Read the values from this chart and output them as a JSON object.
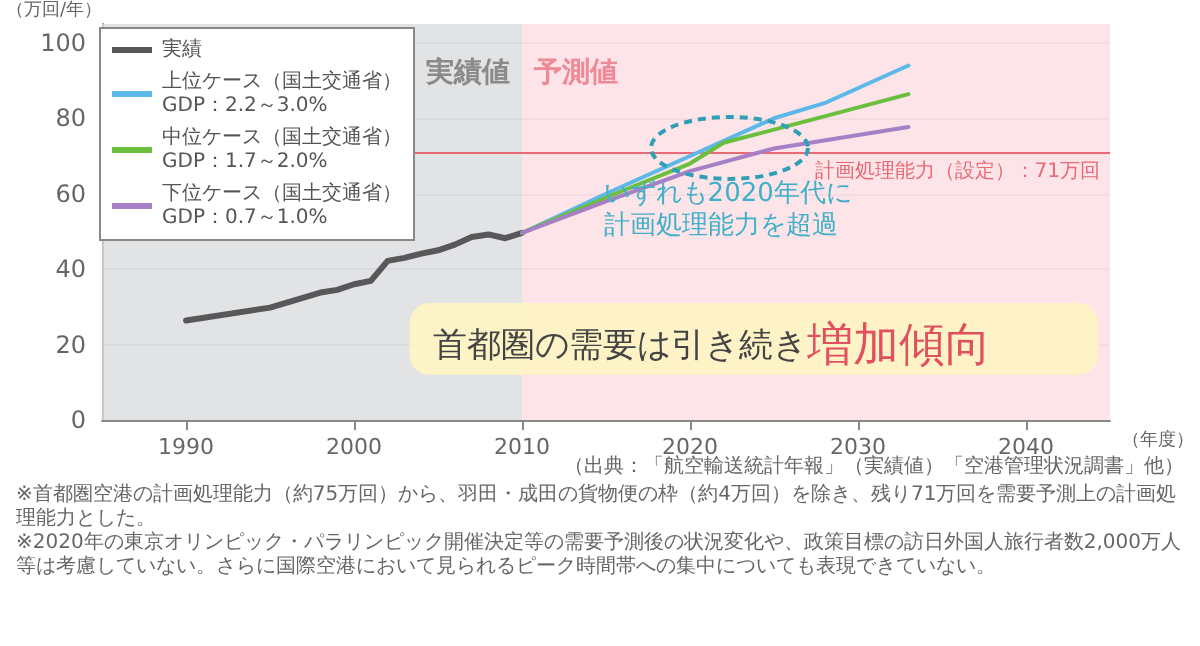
{
  "chart_data": {
    "type": "line",
    "ylabel": "（万回/年）",
    "xlabel": "（年度）",
    "xlim": [
      1985,
      2045
    ],
    "xticks": [
      1990,
      2000,
      2010,
      2020,
      2030,
      2040
    ],
    "ylim": [
      0,
      105
    ],
    "yticks": [
      0,
      20,
      40,
      60,
      80,
      100
    ],
    "grid": "y",
    "legend": "top left",
    "marker": "none",
    "line_style": "solid",
    "series": [
      {
        "name": "実績",
        "color": "#58585a",
        "x": [
          1990,
          1995,
          1998,
          1999,
          2000,
          2001,
          2002,
          2003,
          2004,
          2005,
          2006,
          2007,
          2008,
          2009,
          2010
        ],
        "values": [
          26.4,
          29.8,
          33.8,
          34.5,
          36,
          36.9,
          42.2,
          43,
          44.1,
          45,
          46.5,
          48.5,
          49.2,
          48.2,
          49.6
        ]
      },
      {
        "name": "上位ケース（国土交通省）\nGDP：2.2～3.0%",
        "color": "#5bb8e8",
        "x": [
          2010,
          2015,
          2020,
          2025,
          2028,
          2033
        ],
        "values": [
          49.6,
          60,
          70,
          80,
          84,
          94
        ]
      },
      {
        "name": "中位ケース（国土交通省）\nGDP：1.7～2.0%",
        "color": "#6abf3f",
        "x": [
          2010,
          2015,
          2020,
          2022,
          2025,
          2028,
          2033
        ],
        "values": [
          49.6,
          59,
          68,
          73.5,
          77,
          80.5,
          86.4
        ]
      },
      {
        "name": "下位ケース（国土交通省）\nGDP：0.7～1.0%",
        "color": "#a67fc4",
        "x": [
          2010,
          2015,
          2020,
          2025,
          2033
        ],
        "values": [
          49.6,
          58,
          66,
          72,
          77.7
        ]
      }
    ],
    "ref_lines": [
      {
        "axis": "y",
        "value": 71,
        "label": "計画処理能力（設定）：71万回",
        "color": "#e86a75"
      }
    ],
    "bands": [
      {
        "axis": "x",
        "from": 1985,
        "to": 2010,
        "label": "実績値",
        "color": "#d9dcdd"
      },
      {
        "axis": "x",
        "from": 2010,
        "to": 2045,
        "label": "予測値",
        "color": "#fbdde2"
      }
    ],
    "annotations": [
      "いずれも2020年代に",
      "計画処理能力を超過",
      "首都圏の需要は引き続き",
      "増加傾向",
      "（出典：「航空輸送統計年報」（実績値）「空港管理状況調書」他）",
      "※首都圏空港の計画処理能力（約75万回）から、羽田・成田の貨物便の枠（約4万回）を除き、残り71万回を需要予測上の計画処理能力とした。",
      "※2020年の東京オリンピック・パラリンピック開催決定等の需要予測後の状況変化や、政策目標の訪日外国人旅行者数2,000万人等は考慮していない。さらに国際空港において見られるピーク時間帯への集中についても表現できていない。"
    ]
  }
}
